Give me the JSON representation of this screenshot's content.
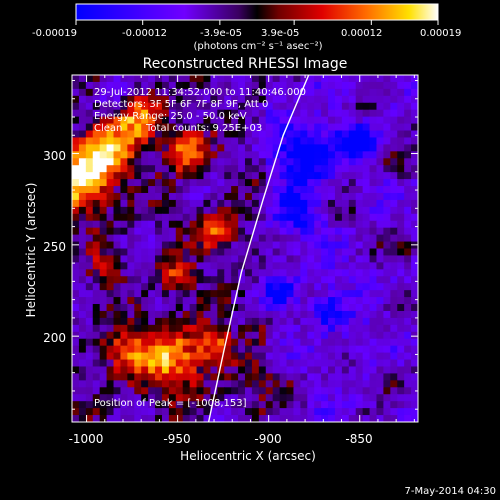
{
  "chart_data": {
    "type": "heatmap",
    "title": "Reconstructed RHESSI Image",
    "xlabel": "Heliocentric X (arcsec)",
    "ylabel": "Heliocentric Y (arcsec)",
    "xlim": [
      -1008,
      -818
    ],
    "ylim": [
      153,
      343
    ],
    "x_ticks": [
      -1000,
      -950,
      -900,
      -850
    ],
    "y_ticks": [
      200,
      250,
      300
    ],
    "colorbar": {
      "range": [
        -0.00019,
        0.00019
      ],
      "tick_labels": [
        "-0.00019",
        "-0.00012",
        "-3.9e-05",
        "3.9e-05",
        "0.00012",
        "0.00019"
      ],
      "unit_label": "(photons cm⁻² s⁻¹ asec⁻²)",
      "colormap": [
        "#0000ff",
        "#6a00ff",
        "#7a00c8",
        "#000000",
        "#8a0000",
        "#e60000",
        "#ff6a00",
        "#ffe000",
        "#ffffff"
      ]
    },
    "annotations": {
      "time_range": "29-Jul-2012 11:34:52.000 to 11:40:46.000",
      "detectors": "Detectors: 3F 5F 6F 7F 8F 9F, Att 0",
      "energy_range": "Energy Range: 25.0 - 50.0 keV",
      "clean": "Clean",
      "total_counts": "Total counts: 9.25E+03",
      "peak": "Position of Peak = [-1008,153]"
    },
    "limb": {
      "points": [
        [
          -933,
          153
        ],
        [
          -925,
          190
        ],
        [
          -915,
          235
        ],
        [
          -903,
          275
        ],
        [
          -892,
          310
        ],
        [
          -878,
          343
        ]
      ]
    }
  },
  "footer": {
    "date": "7-May-2014 04:30"
  },
  "colors": {
    "background": "#000000",
    "text": "#ffffff",
    "limb": "#ffffff"
  }
}
